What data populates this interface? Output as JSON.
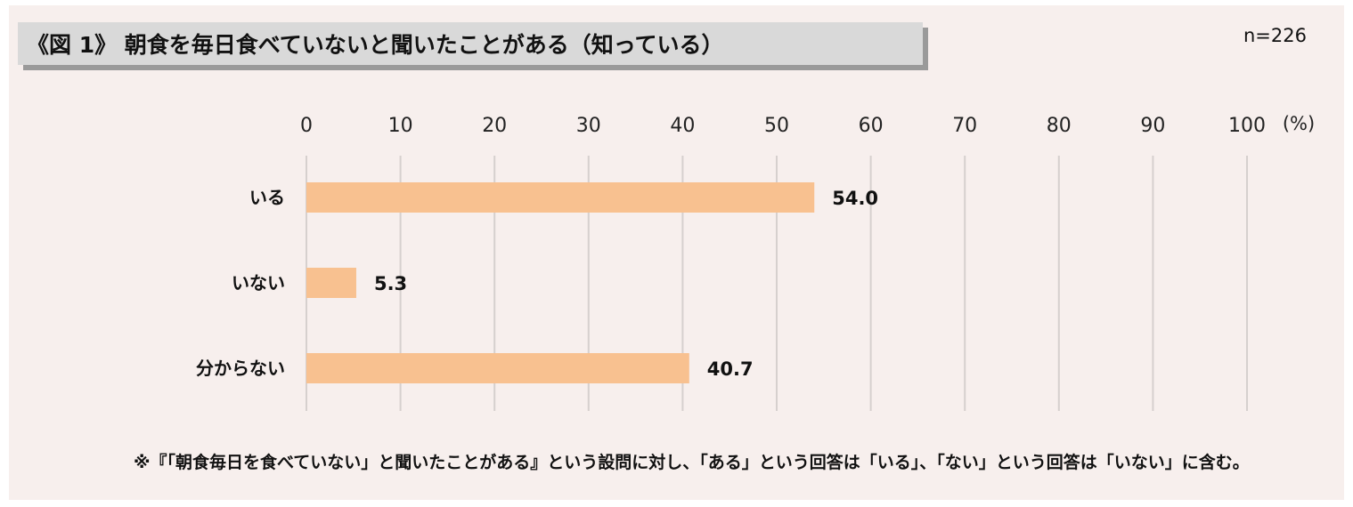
{
  "title": "《図 1》 朝食を毎日食べていないと聞いたことがある（知っている）",
  "sample_size": "n=226",
  "footnote": "※『「朝食毎日を食べていない」と聞いたことがある』という設問に対し、「ある」という回答は「いる」、「ない」という回答は「いない」に含む。",
  "colors": {
    "bar": "#f8c190",
    "background": "#f7efed",
    "title_box": "#d9d9d9",
    "grid": "#d6d0ce"
  },
  "chart_data": {
    "type": "bar",
    "orientation": "horizontal",
    "categories": [
      "いる",
      "いない",
      "分からない"
    ],
    "values": [
      54.0,
      5.3,
      40.7
    ],
    "value_labels": [
      "54.0",
      "5.3",
      "40.7"
    ],
    "xlim": [
      0,
      100
    ],
    "x_ticks": [
      0,
      10,
      20,
      30,
      40,
      50,
      60,
      70,
      80,
      90,
      100
    ],
    "x_unit_label": "(%)",
    "grid": true
  }
}
